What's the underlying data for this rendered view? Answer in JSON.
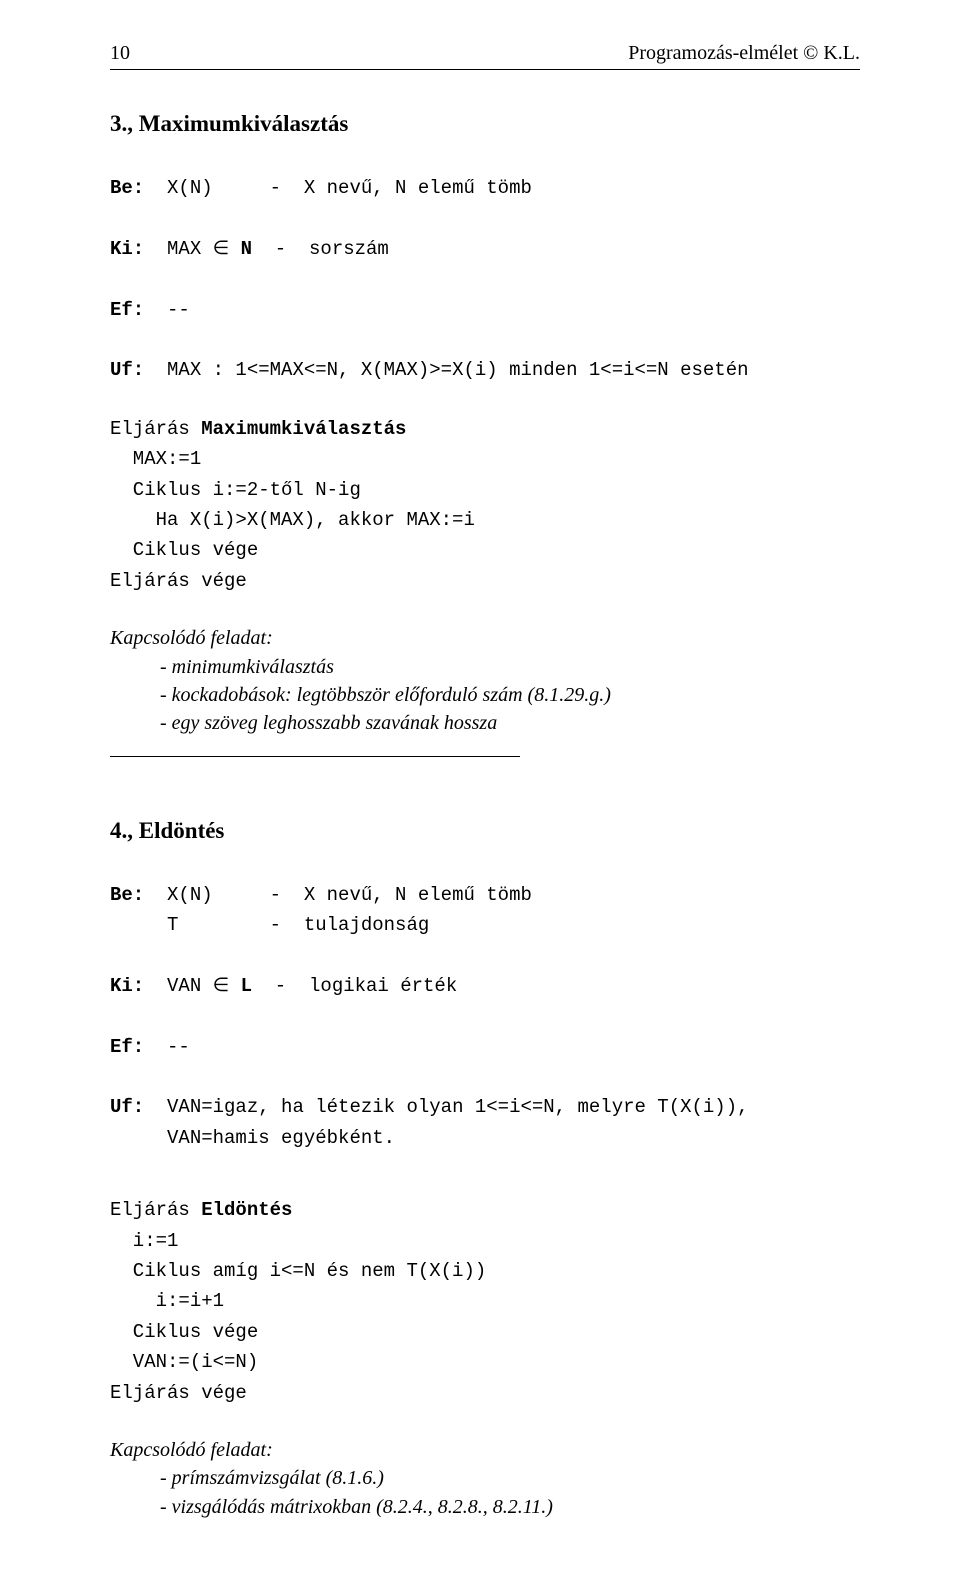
{
  "header": {
    "page_number": "10",
    "title_right": "Programozás-elmélet  © K.L."
  },
  "section3": {
    "title": "3., Maximumkiválasztás",
    "be_label": "Be:",
    "be_line": "  X(N)     -  X nevű, N elemű tömb",
    "ki_label": "Ki:",
    "ki_line": "  MAX ∈ N  -  sorszám",
    "ef_label": "Ef:",
    "ef_line": "  --",
    "uf_label": "Uf:",
    "uf_line": "  MAX : 1<=MAX<=N, X(MAX)>=X(i) minden 1<=i<=N esetén",
    "proc_l1a": "Eljárás ",
    "proc_l1b": "Maximumkiválasztás",
    "proc_l2": "  MAX:=1",
    "proc_l3": "  Ciklus i:=2-től N-ig",
    "proc_l4": "    Ha X(i)>X(MAX), akkor MAX:=i",
    "proc_l5": "  Ciklus vége",
    "proc_l6": "Eljárás vége",
    "related_title": "Kapcsolódó feladat:",
    "related_1": "- minimumkiválasztás",
    "related_2": "- kockadobások: legtöbbször előforduló szám (8.1.29.g.)",
    "related_3": "- egy szöveg leghosszabb szavának hossza"
  },
  "section4": {
    "title": "4., Eldöntés",
    "be_label": "Be:",
    "be_line1": "  X(N)     -  X nevű, N elemű tömb",
    "be_line2": "     T        -  tulajdonság",
    "ki_label": "Ki:",
    "ki_line": "  VAN ∈ L  -  logikai érték",
    "ef_label": "Ef:",
    "ef_line": "  --",
    "uf_label": "Uf:",
    "uf_line1": "  VAN=igaz, ha létezik olyan 1<=i<=N, melyre T(X(i)),",
    "uf_line2": "     VAN=hamis egyébként.",
    "proc_l1a": "Eljárás ",
    "proc_l1b": "Eldöntés",
    "proc_l2": "  i:=1",
    "proc_l3": "  Ciklus amíg i<=N és nem T(X(i))",
    "proc_l4": "    i:=i+1",
    "proc_l5": "  Ciklus vége",
    "proc_l6": "  VAN:=(i<=N)",
    "proc_l7": "Eljárás vége",
    "related_title": "Kapcsolódó feladat:",
    "related_1": "- prímszámvizsgálat (8.1.6.)",
    "related_2": "- vizsgálódás mátrixokban (8.2.4., 8.2.8., 8.2.11.)"
  }
}
